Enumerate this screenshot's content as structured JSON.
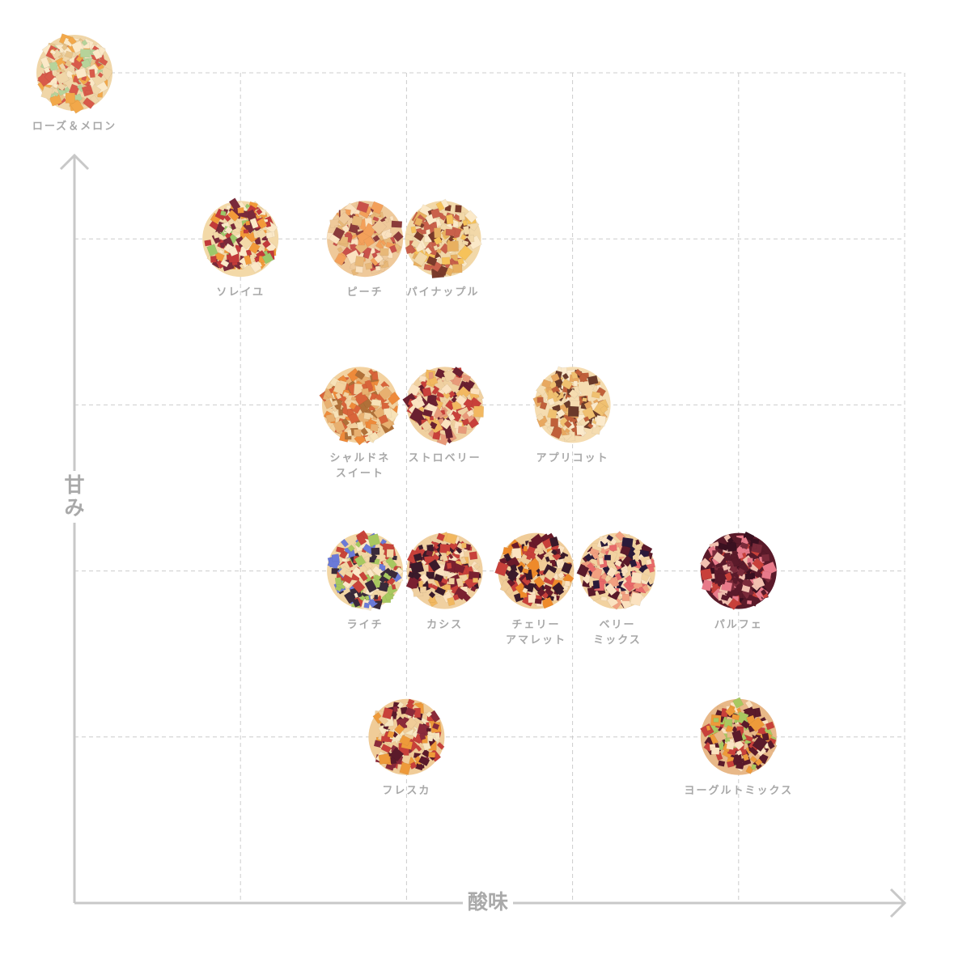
{
  "chart_data": {
    "type": "scatter",
    "xlabel": "酸味",
    "ylabel": [
      "甘",
      "み"
    ],
    "xlim": [
      0,
      5
    ],
    "ylim": [
      0,
      5
    ],
    "grid": true,
    "grid_color": "#cccccc",
    "axis_color": "#c8c8c8",
    "points": [
      {
        "label": [
          "ローズ＆メロン"
        ],
        "x": 0,
        "y": 5,
        "colors": [
          "#f0d6a8",
          "#e8c48a",
          "#b6d39a",
          "#d85a4a",
          "#f2a84a",
          "#fbe9c8"
        ]
      },
      {
        "label": [
          "ソレイユ"
        ],
        "x": 1,
        "y": 4,
        "colors": [
          "#f3d9a8",
          "#c23a3a",
          "#9cc86a",
          "#f29a3a",
          "#7a2a3a",
          "#fbe9c8"
        ]
      },
      {
        "label": [
          "ピーチ"
        ],
        "x": 1.75,
        "y": 4,
        "colors": [
          "#efc99a",
          "#c9524a",
          "#f3a05a",
          "#e8b878",
          "#8a3a3a",
          "#fbe2c0"
        ]
      },
      {
        "label": [
          "パイナップル"
        ],
        "x": 2.22,
        "y": 4,
        "colors": [
          "#f2d8a8",
          "#e8b060",
          "#c9604a",
          "#7a3a2a",
          "#f6c25a",
          "#fbe9c8"
        ]
      },
      {
        "label": [
          "シャルドネ",
          "スイート"
        ],
        "x": 1.72,
        "y": 3,
        "colors": [
          "#f3d2a0",
          "#ee8a3a",
          "#d8643a",
          "#f7e2b8",
          "#b07038",
          "#e8b070"
        ]
      },
      {
        "label": [
          "ストロベリー"
        ],
        "x": 2.23,
        "y": 3,
        "colors": [
          "#f0d0a0",
          "#c8403a",
          "#6a2030",
          "#e89a7a",
          "#f2b860",
          "#fbe2c0"
        ]
      },
      {
        "label": [
          "アプリコット"
        ],
        "x": 3,
        "y": 3,
        "colors": [
          "#f5dcb0",
          "#f0c070",
          "#c0603a",
          "#6a3a2a",
          "#fbeacc",
          "#e8a860"
        ]
      },
      {
        "label": [
          "ライチ"
        ],
        "x": 1.75,
        "y": 2,
        "colors": [
          "#f2d6a4",
          "#a8c860",
          "#6a7ad8",
          "#3a2a3a",
          "#c8443a",
          "#fbe9c8"
        ]
      },
      {
        "label": [
          "カシス"
        ],
        "x": 2.23,
        "y": 2,
        "colors": [
          "#f0d0a0",
          "#3a1a2a",
          "#7a2030",
          "#c8403a",
          "#f2b860",
          "#fbe2c0"
        ]
      },
      {
        "label": [
          "チェリー",
          "アマレット"
        ],
        "x": 2.78,
        "y": 2,
        "colors": [
          "#f0cc98",
          "#3a1a2a",
          "#6a1a2a",
          "#ee8a2a",
          "#c8403a",
          "#fbe2c0"
        ]
      },
      {
        "label": [
          "ベリー",
          "ミックス"
        ],
        "x": 3.27,
        "y": 2,
        "colors": [
          "#f2d2a0",
          "#e86a6a",
          "#5a1a2a",
          "#2a1a3a",
          "#f2a080",
          "#fbe2c0"
        ]
      },
      {
        "label": [
          "パルフェ"
        ],
        "x": 4,
        "y": 2,
        "colors": [
          "#5a1a2a",
          "#3a1020",
          "#e87a8a",
          "#c8403a",
          "#f2c0b0",
          "#7a2a3a"
        ]
      },
      {
        "label": [
          "フレスカ"
        ],
        "x": 2,
        "y": 1,
        "colors": [
          "#f0cc98",
          "#5a1a2a",
          "#c8403a",
          "#f7e6c0",
          "#ee9a3a",
          "#8a2a3a"
        ]
      },
      {
        "label": [
          "ヨーグルトミックス"
        ],
        "x": 4,
        "y": 1,
        "colors": [
          "#e8b888",
          "#c8403a",
          "#a8c860",
          "#5a1a2a",
          "#ee9a3a",
          "#fbe2c0"
        ]
      }
    ]
  }
}
